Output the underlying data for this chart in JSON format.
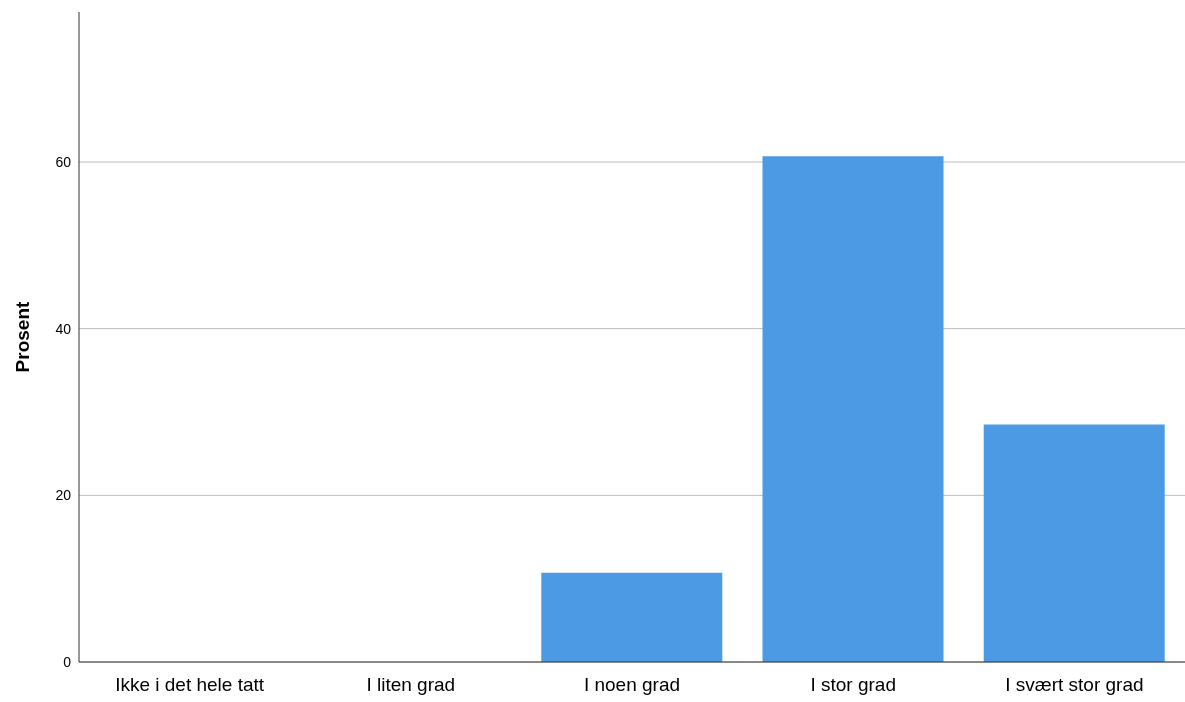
{
  "chart_data": {
    "type": "bar",
    "ylabel": "Prosent",
    "categories": [
      "Ikke i det hele tatt",
      "I liten grad",
      "I noen grad",
      "I stor grad",
      "I svært stor grad"
    ],
    "values": [
      0,
      0,
      10.7,
      60.7,
      28.5
    ],
    "color": "#4c9ae4",
    "ylim": [
      0,
      78
    ],
    "yticks": [
      0,
      20,
      40,
      60
    ],
    "grid": "y"
  }
}
